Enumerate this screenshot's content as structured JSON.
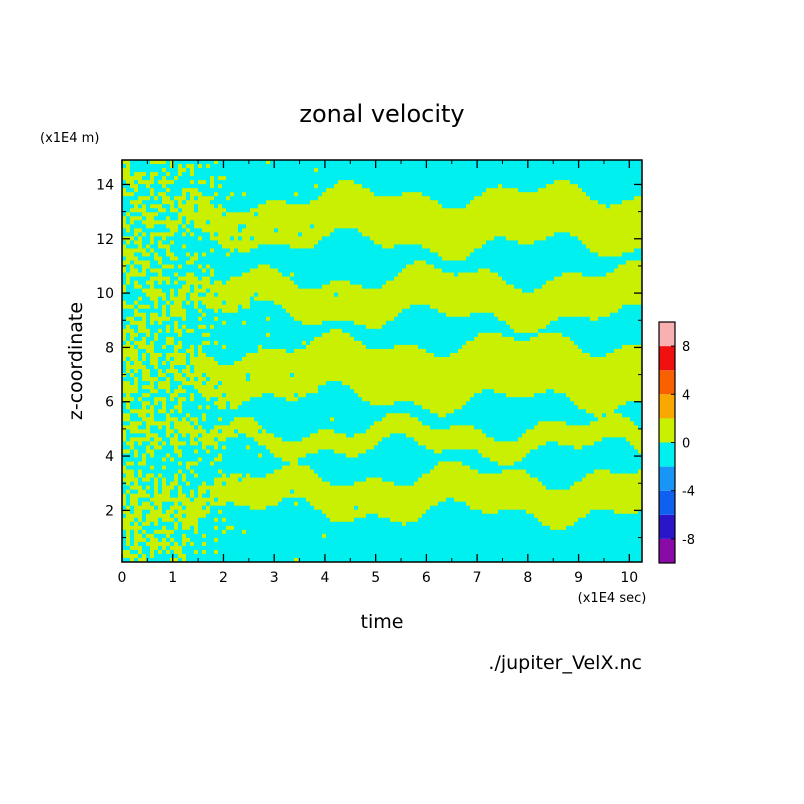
{
  "chart_data": {
    "type": "heatmap",
    "title": "zonal velocity",
    "xlabel": "time",
    "ylabel": "z-coordinate",
    "x_scale_label": "(x1E4 sec)",
    "y_scale_label": "(x1E4 m)",
    "source_label": "./jupiter_VelX.nc",
    "xlim": [
      0,
      10.25
    ],
    "ylim": [
      0.1,
      14.9
    ],
    "x_ticks": [
      0,
      1,
      2,
      3,
      4,
      5,
      6,
      7,
      8,
      9,
      10
    ],
    "y_ticks": [
      2,
      4,
      6,
      8,
      10,
      12,
      14
    ],
    "grid": false,
    "colorbar": {
      "position": "right",
      "range": [
        -10,
        10
      ],
      "levels": [
        -10,
        -8,
        -6,
        -4,
        -2,
        0,
        2,
        4,
        6,
        8,
        10
      ],
      "tick_labels": [
        "-8",
        "-4",
        "0",
        "4",
        "8"
      ],
      "tick_values": [
        -8,
        -4,
        0,
        4,
        8
      ],
      "colors": [
        "#8a0aa8",
        "#2a16c8",
        "#1060f0",
        "#1896f5",
        "#00f0f0",
        "#c8f000",
        "#f8a800",
        "#f86000",
        "#f01010",
        "#f8b0b0"
      ]
    },
    "dominant_bands": {
      "positive_color": "#c8f000",
      "negative_color": "#00f0f0",
      "positive_z_ranges_late_time": [
        [
          2.0,
          3.2
        ],
        [
          4.3,
          5.0
        ],
        [
          6.2,
          8.0
        ],
        [
          9.2,
          10.5
        ],
        [
          11.9,
          13.5
        ]
      ],
      "negative_z_ranges_late_time": [
        [
          0.1,
          2.0
        ],
        [
          3.2,
          4.3
        ],
        [
          5.0,
          6.2
        ],
        [
          8.0,
          9.2
        ],
        [
          10.5,
          11.9
        ],
        [
          13.5,
          14.9
        ]
      ]
    }
  }
}
